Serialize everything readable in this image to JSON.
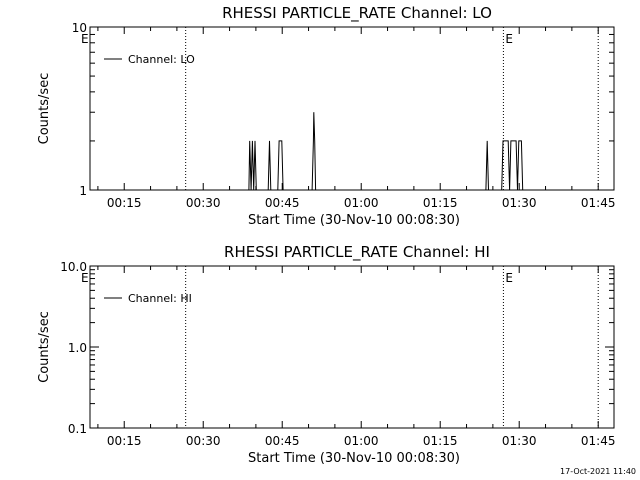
{
  "footer_timestamp": "17-Oct-2021 11:40",
  "colors": {
    "background": "#ffffff",
    "foreground": "#000000"
  },
  "chart_data": [
    {
      "type": "line",
      "title": "RHESSI PARTICLE_RATE Channel: LO",
      "xlabel": "Start Time (30-Nov-10 00:08:30)",
      "ylabel": "Counts/sec",
      "yscale": "log",
      "xlim": [
        "00:08:30",
        "01:48:00"
      ],
      "ylim": [
        1,
        10
      ],
      "x_ticks": [
        "00:15",
        "00:30",
        "00:45",
        "01:00",
        "01:15",
        "01:30",
        "01:45"
      ],
      "y_ticks": [
        "1",
        "10"
      ],
      "legend": {
        "entries": [
          "Channel: LO"
        ],
        "placement": "top-left"
      },
      "markers": [
        {
          "time": "00:26:40",
          "label": ""
        },
        {
          "time": "01:27:00",
          "label": "E"
        },
        {
          "time": "01:45:00",
          "label": ""
        }
      ],
      "corner_label": "E",
      "series": [
        {
          "name": "Channel: LO",
          "points": [
            [
              "00:08:30",
              1
            ],
            [
              "00:38:40",
              1
            ],
            [
              "00:38:50",
              2
            ],
            [
              "00:39:05",
              1
            ],
            [
              "00:39:20",
              2
            ],
            [
              "00:39:35",
              1
            ],
            [
              "00:39:50",
              2
            ],
            [
              "00:40:05",
              1
            ],
            [
              "00:42:20",
              1
            ],
            [
              "00:42:35",
              2
            ],
            [
              "00:42:50",
              1
            ],
            [
              "00:44:10",
              1
            ],
            [
              "00:44:25",
              2
            ],
            [
              "00:44:55",
              2
            ],
            [
              "00:45:10",
              1
            ],
            [
              "00:50:40",
              1
            ],
            [
              "00:50:55",
              2
            ],
            [
              "00:51:00",
              3
            ],
            [
              "00:51:10",
              2
            ],
            [
              "00:51:20",
              1
            ],
            [
              "01:23:40",
              1
            ],
            [
              "01:23:55",
              2
            ],
            [
              "01:24:10",
              1
            ],
            [
              "01:26:40",
              1
            ],
            [
              "01:26:55",
              2
            ],
            [
              "01:27:55",
              2
            ],
            [
              "01:28:10",
              1
            ],
            [
              "01:28:25",
              2
            ],
            [
              "01:29:25",
              2
            ],
            [
              "01:29:40",
              1
            ],
            [
              "01:29:55",
              2
            ],
            [
              "01:30:25",
              2
            ],
            [
              "01:30:40",
              1
            ],
            [
              "01:48:00",
              1
            ]
          ]
        }
      ]
    },
    {
      "type": "line",
      "title": "RHESSI PARTICLE_RATE Channel: HI",
      "xlabel": "Start Time (30-Nov-10 00:08:30)",
      "ylabel": "Counts/sec",
      "yscale": "log",
      "xlim": [
        "00:08:30",
        "01:48:00"
      ],
      "ylim": [
        0.1,
        10.0
      ],
      "x_ticks": [
        "00:15",
        "00:30",
        "00:45",
        "01:00",
        "01:15",
        "01:30",
        "01:45"
      ],
      "y_ticks": [
        "0.1",
        "1.0",
        "10.0"
      ],
      "legend": {
        "entries": [
          "Channel: HI"
        ],
        "placement": "top-left"
      },
      "markers": [
        {
          "time": "00:26:40",
          "label": ""
        },
        {
          "time": "01:27:00",
          "label": "E"
        },
        {
          "time": "01:45:00",
          "label": ""
        }
      ],
      "corner_label": "E",
      "series": [
        {
          "name": "Channel: HI",
          "points": []
        }
      ]
    }
  ]
}
